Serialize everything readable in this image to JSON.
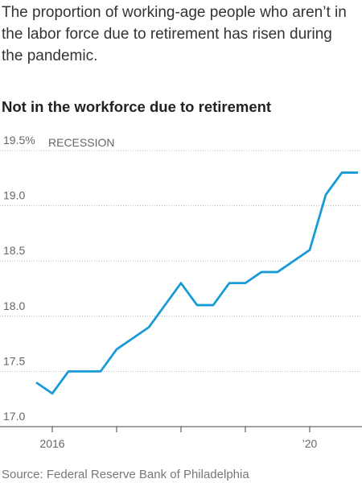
{
  "chart_data": {
    "type": "line",
    "subtitle": "The proportion of working-age people who aren’t in the labor force due to retirement has risen during the pandemic.",
    "title": "Not in the workforce due to retirement",
    "annotation": "RECESSION",
    "source": "Source: Federal Reserve Bank of Philadelphia",
    "x": [
      2015.75,
      2016,
      2016.25,
      2016.5,
      2016.75,
      2017,
      2017.25,
      2017.5,
      2017.75,
      2018,
      2018.25,
      2018.5,
      2018.75,
      2019,
      2019.25,
      2019.5,
      2019.75,
      2020,
      2020.25,
      2020.5,
      2020.75
    ],
    "series": [
      {
        "name": "Not in the workforce due to retirement",
        "color": "#1a9bd7",
        "values": [
          17.4,
          17.3,
          17.5,
          17.5,
          17.5,
          17.7,
          17.8,
          17.9,
          18.1,
          18.3,
          18.1,
          18.1,
          18.3,
          18.3,
          18.4,
          18.4,
          18.5,
          18.6,
          19.1,
          19.3,
          19.3
        ]
      }
    ],
    "xlim": [
      2015.75,
      2020.75
    ],
    "xticks": [
      2016,
      {
        "value": 2020,
        "label": "’20"
      }
    ],
    "xminor_ticks": [
      2017,
      2018,
      2019
    ],
    "ylim": [
      17,
      19.5
    ],
    "yticks": [
      {
        "value": 17,
        "label": "17.0"
      },
      17.5,
      {
        "value": 18,
        "label": "18.0"
      },
      18.5,
      {
        "value": 19,
        "label": "19.0"
      },
      {
        "value": 19.5,
        "label": "19.5%"
      }
    ],
    "grid": true
  }
}
